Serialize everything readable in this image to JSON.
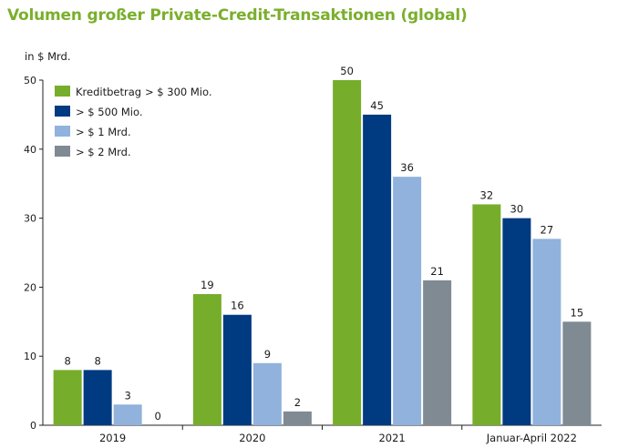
{
  "chart_data": {
    "type": "bar",
    "title": "Volumen großer Private-Credit-Transaktionen (global)",
    "ylabel": "in $ Mrd.",
    "xlabel": "",
    "ylim": [
      0,
      50
    ],
    "yticks": [
      0,
      10,
      20,
      30,
      40,
      50
    ],
    "categories": [
      "2019",
      "2020",
      "2021",
      "Januar-April  2022"
    ],
    "legend_position": "top-left",
    "legend_prefix": "Kreditbetrag",
    "series": [
      {
        "name": "> $ 300 Mio.",
        "color": "#76ad2b",
        "values": [
          8,
          19,
          50,
          32
        ]
      },
      {
        "name": "> $ 500 Mio.",
        "color": "#003a80",
        "values": [
          8,
          16,
          45,
          30
        ]
      },
      {
        "name": "> $ 1 Mrd.",
        "color": "#90b2dc",
        "values": [
          3,
          9,
          36,
          27
        ]
      },
      {
        "name": "> $ 2 Mrd.",
        "color": "#808a93",
        "values": [
          0,
          2,
          21,
          15
        ]
      }
    ]
  }
}
